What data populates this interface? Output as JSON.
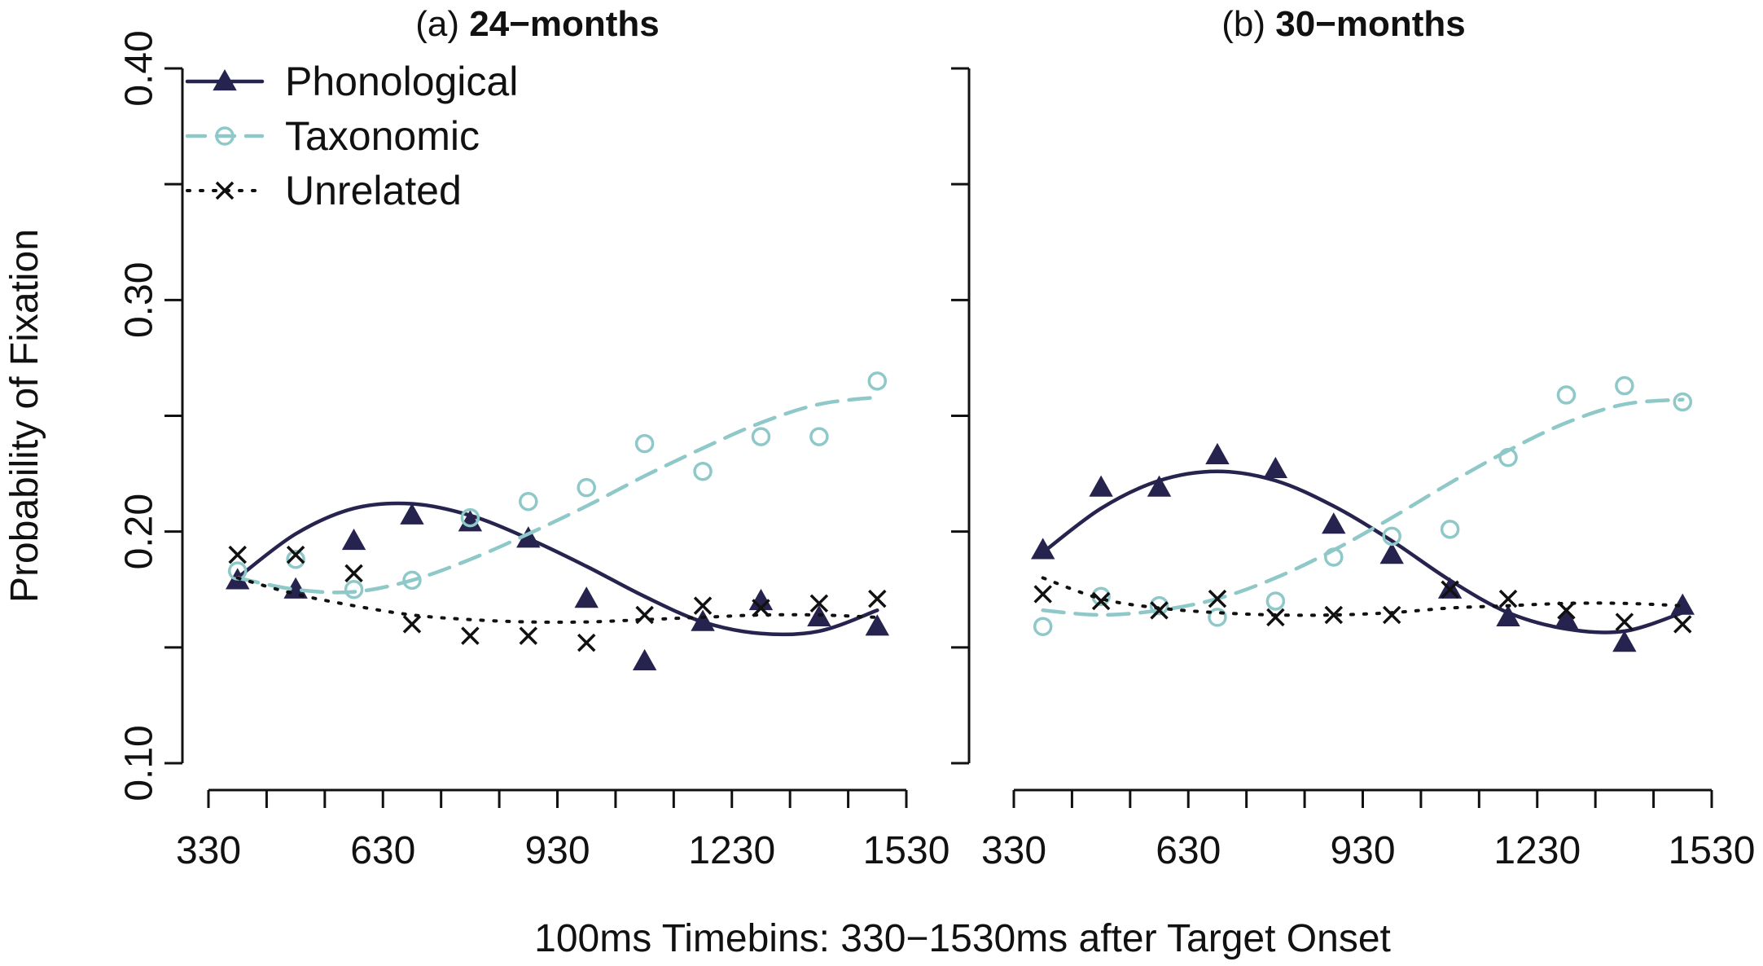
{
  "chart_data": {
    "type": "line",
    "ylabel": "Probability of Fixation",
    "xlabel": "100ms Timebins: 330−1530ms after Target Onset",
    "ylim": [
      0.1,
      0.4
    ],
    "xlim": [
      330,
      1530
    ],
    "yticks": [
      0.1,
      0.15,
      0.2,
      0.25,
      0.3,
      0.35,
      0.4
    ],
    "yticklabels": [
      "0.10",
      "0.20",
      "0.30",
      "0.40"
    ],
    "yticklabel_values": [
      0.1,
      0.2,
      0.3,
      0.4
    ],
    "xticks": [
      330,
      430,
      530,
      630,
      730,
      830,
      930,
      1030,
      1130,
      1230,
      1330,
      1430,
      1530
    ],
    "xticklabels": [
      "330",
      "630",
      "930",
      "1230",
      "1530"
    ],
    "xticklabel_values": [
      330,
      630,
      930,
      1230,
      1530
    ],
    "legend": {
      "position": "top-left",
      "entries": [
        {
          "name": "Phonological",
          "color": "#27234f",
          "marker": "triangle",
          "line": "solid"
        },
        {
          "name": "Taxonomic",
          "color": "#8ec8c8",
          "marker": "circle",
          "line": "dashed"
        },
        {
          "name": "Unrelated",
          "color": "#111111",
          "marker": "x",
          "line": "dotted"
        }
      ]
    },
    "panels": [
      {
        "title_prefix": "(a)",
        "title_bold": "24−months",
        "x": [
          380,
          480,
          580,
          680,
          780,
          880,
          980,
          1080,
          1180,
          1280,
          1380,
          1480
        ],
        "series": [
          {
            "name": "Phonological",
            "points": [
              0.179,
              0.175,
              0.196,
              0.207,
              0.204,
              0.197,
              0.171,
              0.144,
              0.161,
              0.17,
              0.163,
              0.159
            ],
            "fit": [
              [
                380,
                0.18
              ],
              [
                480,
                0.199
              ],
              [
                580,
                0.21
              ],
              [
                680,
                0.212
              ],
              [
                780,
                0.207
              ],
              [
                880,
                0.197
              ],
              [
                980,
                0.185
              ],
              [
                1080,
                0.172
              ],
              [
                1180,
                0.161
              ],
              [
                1280,
                0.156
              ],
              [
                1380,
                0.157
              ],
              [
                1480,
                0.166
              ]
            ]
          },
          {
            "name": "Taxonomic",
            "points": [
              0.183,
              0.188,
              0.175,
              0.179,
              0.206,
              0.213,
              0.219,
              0.238,
              0.226,
              0.241,
              0.241,
              0.265
            ],
            "fit": [
              [
                380,
                0.18
              ],
              [
                480,
                0.175
              ],
              [
                580,
                0.174
              ],
              [
                680,
                0.179
              ],
              [
                780,
                0.188
              ],
              [
                880,
                0.199
              ],
              [
                980,
                0.211
              ],
              [
                1080,
                0.224
              ],
              [
                1180,
                0.236
              ],
              [
                1280,
                0.247
              ],
              [
                1380,
                0.255
              ],
              [
                1480,
                0.258
              ]
            ]
          },
          {
            "name": "Unrelated",
            "points": [
              0.19,
              0.19,
              0.182,
              0.16,
              0.155,
              0.155,
              0.152,
              0.164,
              0.168,
              0.167,
              0.169,
              0.171
            ],
            "fit": [
              [
                380,
                0.18
              ],
              [
                480,
                0.173
              ],
              [
                580,
                0.168
              ],
              [
                680,
                0.164
              ],
              [
                780,
                0.162
              ],
              [
                880,
                0.161
              ],
              [
                980,
                0.161
              ],
              [
                1080,
                0.162
              ],
              [
                1180,
                0.163
              ],
              [
                1280,
                0.164
              ],
              [
                1380,
                0.164
              ],
              [
                1480,
                0.163
              ]
            ]
          }
        ]
      },
      {
        "title_prefix": "(b)",
        "title_bold": "30−months",
        "x": [
          380,
          480,
          580,
          680,
          780,
          880,
          980,
          1080,
          1180,
          1280,
          1380,
          1480
        ],
        "series": [
          {
            "name": "Phonological",
            "points": [
              0.192,
              0.219,
              0.219,
              0.233,
              0.227,
              0.203,
              0.19,
              0.175,
              0.163,
              0.162,
              0.152,
              0.168
            ],
            "fit": [
              [
                380,
                0.191
              ],
              [
                480,
                0.21
              ],
              [
                580,
                0.222
              ],
              [
                680,
                0.226
              ],
              [
                780,
                0.222
              ],
              [
                880,
                0.211
              ],
              [
                980,
                0.196
              ],
              [
                1080,
                0.179
              ],
              [
                1180,
                0.165
              ],
              [
                1280,
                0.158
              ],
              [
                1380,
                0.157
              ],
              [
                1480,
                0.165
              ]
            ]
          },
          {
            "name": "Taxonomic",
            "points": [
              0.159,
              0.172,
              0.168,
              0.163,
              0.17,
              0.189,
              0.198,
              0.201,
              0.232,
              0.259,
              0.263,
              0.256
            ],
            "fit": [
              [
                380,
                0.166
              ],
              [
                480,
                0.164
              ],
              [
                580,
                0.166
              ],
              [
                680,
                0.171
              ],
              [
                780,
                0.18
              ],
              [
                880,
                0.192
              ],
              [
                980,
                0.206
              ],
              [
                1080,
                0.221
              ],
              [
                1180,
                0.235
              ],
              [
                1280,
                0.247
              ],
              [
                1380,
                0.255
              ],
              [
                1480,
                0.257
              ]
            ]
          },
          {
            "name": "Unrelated",
            "points": [
              0.173,
              0.17,
              0.166,
              0.171,
              0.163,
              0.164,
              0.164,
              0.175,
              0.171,
              0.166,
              0.161,
              0.16
            ],
            "fit": [
              [
                380,
                0.18
              ],
              [
                480,
                0.171
              ],
              [
                580,
                0.167
              ],
              [
                680,
                0.165
              ],
              [
                780,
                0.164
              ],
              [
                880,
                0.164
              ],
              [
                980,
                0.165
              ],
              [
                1080,
                0.167
              ],
              [
                1180,
                0.168
              ],
              [
                1280,
                0.169
              ],
              [
                1380,
                0.169
              ],
              [
                1480,
                0.168
              ]
            ]
          }
        ]
      }
    ]
  }
}
